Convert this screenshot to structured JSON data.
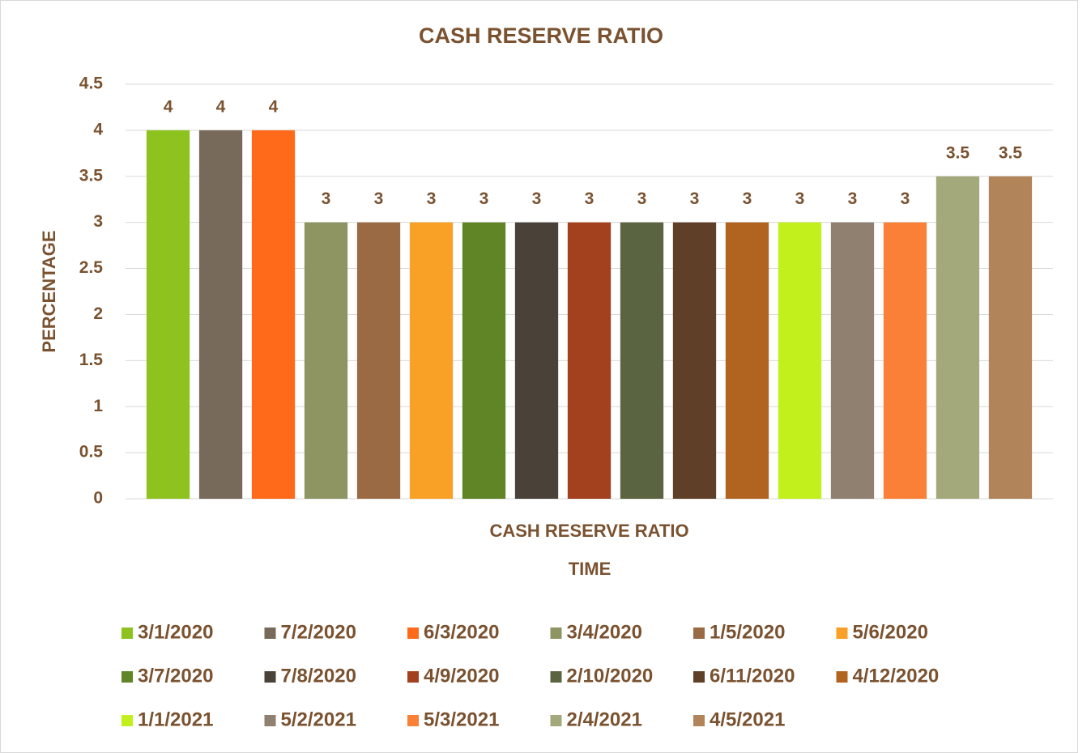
{
  "chart_data": {
    "type": "bar",
    "title": "CASH RESERVE RATIO",
    "categories": [
      "CASH RESERVE RATIO"
    ],
    "x_label": "TIME",
    "y_label": "PERCENTAGE",
    "ylim": [
      0,
      4.5
    ],
    "yticks": [
      0,
      0.5,
      1,
      1.5,
      2,
      2.5,
      3,
      3.5,
      4,
      4.5
    ],
    "grid": true,
    "legend": "bottom",
    "series": [
      {
        "name": "3/1/2020",
        "color": "#8dc21f",
        "values": [
          4
        ]
      },
      {
        "name": "7/2/2020",
        "color": "#776a5a",
        "values": [
          4
        ]
      },
      {
        "name": "6/3/2020",
        "color": "#ff6a1a",
        "values": [
          4
        ]
      },
      {
        "name": "3/4/2020",
        "color": "#8f9463",
        "values": [
          3
        ]
      },
      {
        "name": "1/5/2020",
        "color": "#9a6a45",
        "values": [
          3
        ]
      },
      {
        "name": "5/6/2020",
        "color": "#f9a126",
        "values": [
          3
        ]
      },
      {
        "name": "3/7/2020",
        "color": "#5f8526",
        "values": [
          3
        ]
      },
      {
        "name": "7/8/2020",
        "color": "#4a4139",
        "values": [
          3
        ]
      },
      {
        "name": "4/9/2020",
        "color": "#a3401d",
        "values": [
          3
        ]
      },
      {
        "name": "2/10/2020",
        "color": "#5a6440",
        "values": [
          3
        ]
      },
      {
        "name": "6/11/2020",
        "color": "#603f28",
        "values": [
          3
        ]
      },
      {
        "name": "4/12/2020",
        "color": "#b1641f",
        "values": [
          3
        ]
      },
      {
        "name": "1/1/2021",
        "color": "#c2f01c",
        "values": [
          3
        ]
      },
      {
        "name": "5/2/2021",
        "color": "#8f8070",
        "values": [
          3
        ]
      },
      {
        "name": "5/3/2021",
        "color": "#f98036",
        "values": [
          3
        ]
      },
      {
        "name": "2/4/2021",
        "color": "#a4a97c",
        "values": [
          3.5
        ]
      },
      {
        "name": "4/5/2021",
        "color": "#b2845a",
        "values": [
          3.5
        ]
      }
    ]
  }
}
